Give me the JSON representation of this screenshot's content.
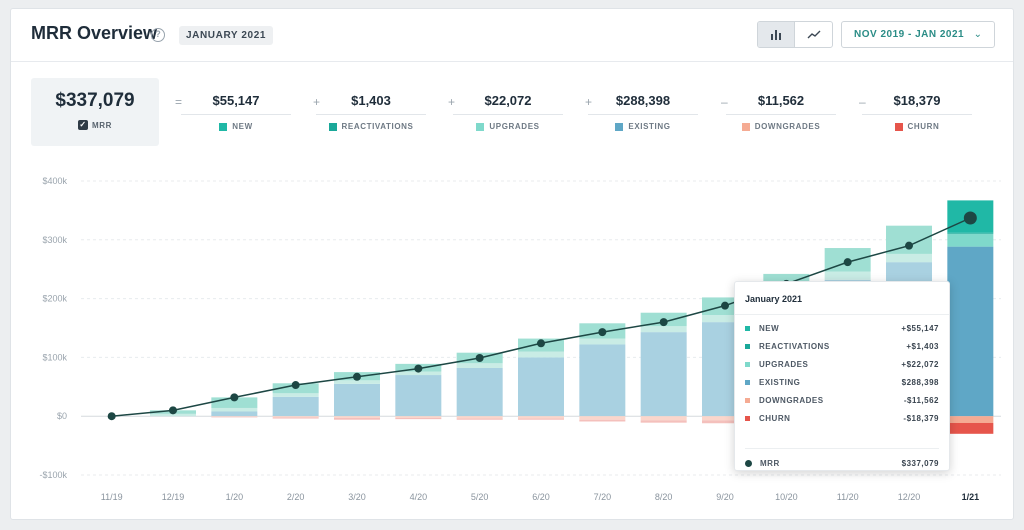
{
  "header": {
    "title": "MRR Overview",
    "month_badge": "JANUARY 2021",
    "date_range": "NOV 2019 - JAN 2021",
    "view_options": [
      "bar-chart-icon",
      "line-chart-icon"
    ],
    "active_view": "bar-chart-icon"
  },
  "summary": {
    "value": "$337,079",
    "label": "MRR",
    "checked": true
  },
  "operators": [
    "=",
    "+",
    "+",
    "+",
    "–",
    "–"
  ],
  "metrics": [
    {
      "value": "$55,147",
      "label": "NEW",
      "color": "#20b8a6"
    },
    {
      "value": "$1,403",
      "label": "REACTIVATIONS",
      "color": "#1aa899"
    },
    {
      "value": "$22,072",
      "label": "UPGRADES",
      "color": "#7fd9cb"
    },
    {
      "value": "$288,398",
      "label": "EXISTING",
      "color": "#5fa7c6"
    },
    {
      "value": "$11,562",
      "label": "DOWNGRADES",
      "color": "#f5ab93"
    },
    {
      "value": "$18,379",
      "label": "CHURN",
      "color": "#e6554b"
    }
  ],
  "chart_data": {
    "type": "bar",
    "categories": [
      "11/19",
      "12/19",
      "1/20",
      "2/20",
      "3/20",
      "4/20",
      "5/20",
      "6/20",
      "7/20",
      "8/20",
      "9/20",
      "10/20",
      "11/20",
      "12/20",
      "1/21"
    ],
    "highlight_category": "1/21",
    "ylim": [
      -100000,
      400000
    ],
    "yticks": [
      400000,
      300000,
      200000,
      100000,
      0,
      -100000
    ],
    "ytick_labels": [
      "$400k",
      "$300k",
      "$200k",
      "$100k",
      "$0",
      "-$100k"
    ],
    "grid": true,
    "series": [
      {
        "name": "EXISTING",
        "color": "#a9d1e1",
        "highlight_color": "#5fa7c6",
        "values": [
          0,
          0,
          8000,
          33000,
          55000,
          70000,
          82000,
          100000,
          122000,
          143000,
          160000,
          200000,
          232000,
          262000,
          288398
        ]
      },
      {
        "name": "UPGRADES",
        "color": "#c9ece5",
        "highlight_color": "#7fd9cb",
        "values": [
          0,
          4000,
          6000,
          6000,
          6000,
          6000,
          8000,
          10000,
          10000,
          10000,
          12000,
          12000,
          14000,
          14000,
          22072
        ]
      },
      {
        "name": "REACTIVATIONS",
        "color": "#b6e6dc",
        "highlight_color": "#1aa899",
        "values": [
          0,
          0,
          0,
          0,
          0,
          0,
          0,
          0,
          0,
          0,
          0,
          0,
          0,
          0,
          1403
        ]
      },
      {
        "name": "NEW",
        "color": "#9fdfd3",
        "highlight_color": "#20b8a6",
        "values": [
          0,
          6000,
          18000,
          17000,
          14000,
          13000,
          18000,
          22000,
          26000,
          23000,
          30000,
          30000,
          40000,
          48000,
          55147
        ]
      },
      {
        "name": "DOWNGRADES",
        "color": "#fbd6cb",
        "highlight_color": "#f5ab93",
        "values": [
          0,
          0,
          -1000,
          -2000,
          -3000,
          -3000,
          -4000,
          -4000,
          -6000,
          -7000,
          -7000,
          -8000,
          -8000,
          -9000,
          -11562
        ]
      },
      {
        "name": "CHURN",
        "color": "#f4c0bc",
        "highlight_color": "#e6554b",
        "values": [
          0,
          0,
          -1000,
          -2000,
          -3000,
          -2000,
          -2000,
          -2000,
          -3000,
          -4000,
          -5000,
          -6000,
          -7000,
          -8000,
          -18379
        ]
      }
    ],
    "line": {
      "name": "MRR",
      "color": "#1d4744",
      "values": [
        0,
        10000,
        32000,
        53000,
        67000,
        81000,
        99000,
        124000,
        143000,
        160000,
        188000,
        225000,
        262000,
        290000,
        337079
      ]
    }
  },
  "tooltip": {
    "title": "January 2021",
    "rows": [
      {
        "label": "NEW",
        "value": "+$55,147",
        "color": "#20b8a6"
      },
      {
        "label": "REACTIVATIONS",
        "value": "+$1,403",
        "color": "#1aa899"
      },
      {
        "label": "UPGRADES",
        "value": "+$22,072",
        "color": "#7fd9cb"
      },
      {
        "label": "EXISTING",
        "value": "$288,398",
        "color": "#5fa7c6"
      },
      {
        "label": "DOWNGRADES",
        "value": "-$11,562",
        "color": "#f5ab93"
      },
      {
        "label": "CHURN",
        "value": "-$18,379",
        "color": "#e6554b"
      }
    ],
    "total_label": "MRR",
    "total_value": "$337,079"
  }
}
